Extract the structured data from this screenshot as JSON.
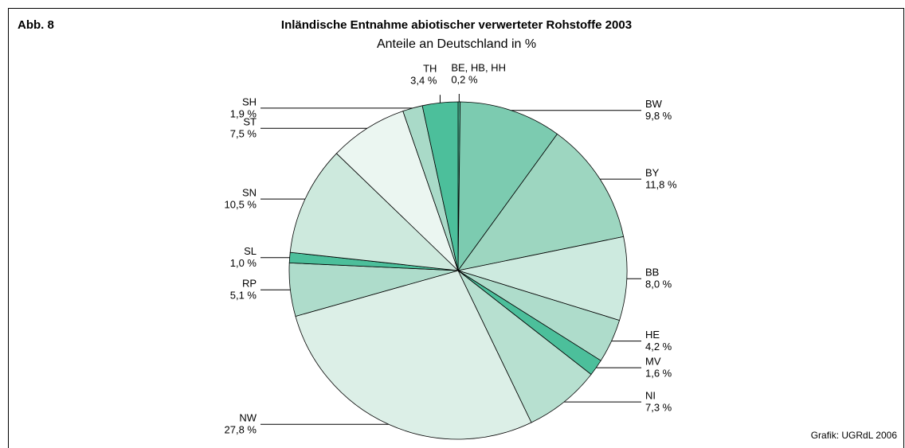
{
  "figure_label": "Abb. 8",
  "credit": "Grafik: UGRdL 2006",
  "chart_data": {
    "type": "pie",
    "title": "Inländische Entnahme abiotischer verwerteter Rohstoffe 2003",
    "subtitle": "Anteile an Deutschland in %",
    "categories": [
      "BE, HB, HH",
      "BW",
      "BY",
      "BB",
      "HE",
      "MV",
      "NI",
      "NW",
      "RP",
      "SL",
      "SN",
      "ST",
      "SH",
      "TH"
    ],
    "values": [
      0.2,
      9.8,
      11.8,
      8.0,
      4.2,
      1.6,
      7.3,
      27.8,
      5.1,
      1.0,
      10.5,
      7.5,
      1.9,
      3.4
    ],
    "value_labels": [
      "0,2 %",
      "9,8 %",
      "11,8 %",
      "8,0 %",
      "4,2 %",
      "1,6 %",
      "7,3 %",
      "27,8 %",
      "5,1 %",
      "1,0 %",
      "10,5 %",
      "7,5 %",
      "1,9 %",
      "3,4 %"
    ],
    "colors": [
      "#4cbf9b",
      "#7ccbb0",
      "#9dd6c0",
      "#cdeadf",
      "#aedccb",
      "#4cbf9b",
      "#b7e0d0",
      "#dcefe7",
      "#aedccb",
      "#4cbf9b",
      "#cde9dd",
      "#ebf6f1",
      "#a9dac8",
      "#4cbf9b"
    ]
  }
}
